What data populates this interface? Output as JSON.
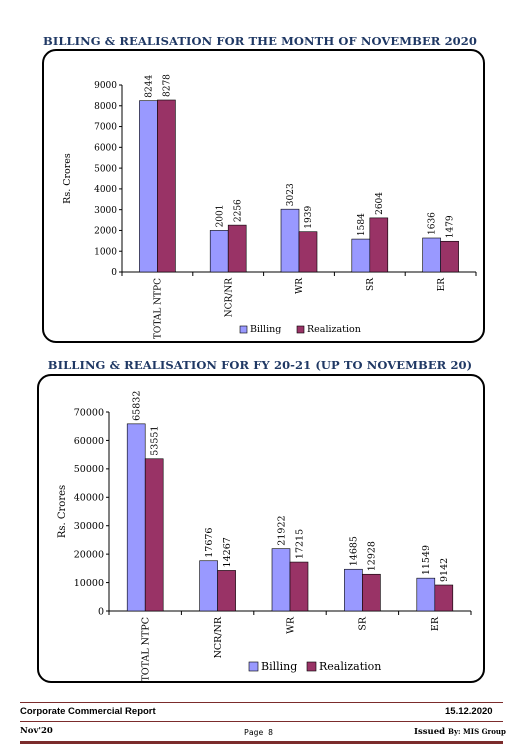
{
  "chart_data": [
    {
      "type": "bar",
      "title": "BILLING & REALISATION FOR THE MONTH OF NOVEMBER 2020",
      "ylabel": "Rs. Crores",
      "xlabel": "",
      "categories": [
        "TOTAL NTPC",
        "NCR/NR",
        "WR",
        "SR",
        "ER"
      ],
      "series": [
        {
          "name": "Billing",
          "values": [
            8244,
            2001,
            3023,
            1584,
            1636
          ],
          "color": "#9999ff"
        },
        {
          "name": "Realization",
          "values": [
            8278,
            2256,
            1939,
            2604,
            1479
          ],
          "color": "#993366"
        }
      ],
      "ylim": [
        0,
        9000
      ],
      "yticks": [
        "0",
        "1000",
        "2000",
        "3000",
        "4000",
        "5000",
        "6000",
        "7000",
        "8000",
        "9000"
      ],
      "legend": "bottom",
      "grid": false
    },
    {
      "type": "bar",
      "title": "BILLING & REALISATION FOR FY 20-21 (UP TO NOVEMBER 20)",
      "ylabel": "Rs. Crores",
      "xlabel": "",
      "categories": [
        "TOTAL NTPC",
        "NCR/NR",
        "WR",
        "SR",
        "ER"
      ],
      "series": [
        {
          "name": "Billing",
          "values": [
            65832,
            17676,
            21922,
            14685,
            11549
          ],
          "color": "#9999ff"
        },
        {
          "name": "Realization",
          "values": [
            53551,
            14267,
            17215,
            12928,
            9142
          ],
          "color": "#993366"
        }
      ],
      "ylim": [
        0,
        70000
      ],
      "yticks": [
        "0",
        "10000",
        "20000",
        "30000",
        "40000",
        "50000",
        "60000",
        "70000"
      ],
      "legend": "bottom",
      "grid": false
    }
  ],
  "footer": {
    "report": "Corporate Commercial Report",
    "date": "15.12.2020",
    "month": "Nov'20",
    "page": "Page 8",
    "issued_label": "Issued",
    "issued_by": "By: MIS Group"
  }
}
